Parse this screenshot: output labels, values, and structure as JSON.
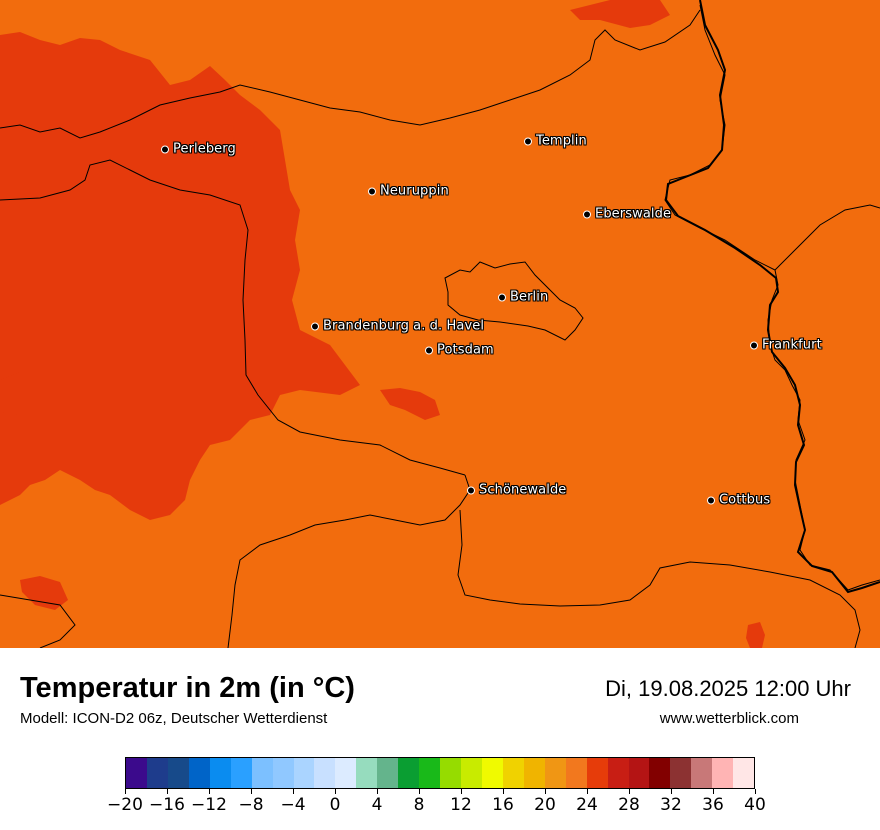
{
  "map": {
    "colors": {
      "base": "#f26c0d",
      "hot": "#e53a0c",
      "border": "#000000"
    },
    "cities": [
      {
        "name": "Perleberg"
      },
      {
        "name": "Templin"
      },
      {
        "name": "Neuruppin"
      },
      {
        "name": "Eberswalde"
      },
      {
        "name": "Berlin"
      },
      {
        "name": "Brandenburg a. d. Havel"
      },
      {
        "name": "Potsdam"
      },
      {
        "name": "Frankfurt"
      },
      {
        "name": "Schönewalde"
      },
      {
        "name": "Cottbus"
      }
    ]
  },
  "footer": {
    "title": "Temperatur in 2m (in °C)",
    "subtitle": "Modell: ICON-D2 06z, Deutscher Wetterdienst",
    "datetime": "Di, 19.08.2025 12:00 Uhr",
    "website": "www.wetterblick.com"
  },
  "colorbar": {
    "min": -20,
    "max": 40,
    "colors": [
      "#3b0a8c",
      "#1e3c8c",
      "#174a8a",
      "#0064c8",
      "#0a8cf0",
      "#2aa0ff",
      "#7cc0ff",
      "#90c8ff",
      "#aad4ff",
      "#c8e0ff",
      "#dcebff",
      "#96dcbe",
      "#64b48c",
      "#0a9e32",
      "#19b919",
      "#96dc00",
      "#c8eb00",
      "#f0fa00",
      "#f0d200",
      "#f0b400",
      "#f09614",
      "#f2781e",
      "#e63c0a",
      "#c81e14",
      "#b41414",
      "#820000",
      "#8c3232",
      "#c87878",
      "#ffb4b4",
      "#ffe6e6"
    ],
    "tick_labels": [
      "−20",
      "−16",
      "−12",
      "−8",
      "−4",
      "0",
      "4",
      "8",
      "12",
      "16",
      "20",
      "24",
      "28",
      "32",
      "36",
      "40"
    ],
    "tick_values": [
      -20,
      -16,
      -12,
      -8,
      -4,
      0,
      4,
      8,
      12,
      16,
      20,
      24,
      28,
      32,
      36,
      40
    ]
  }
}
